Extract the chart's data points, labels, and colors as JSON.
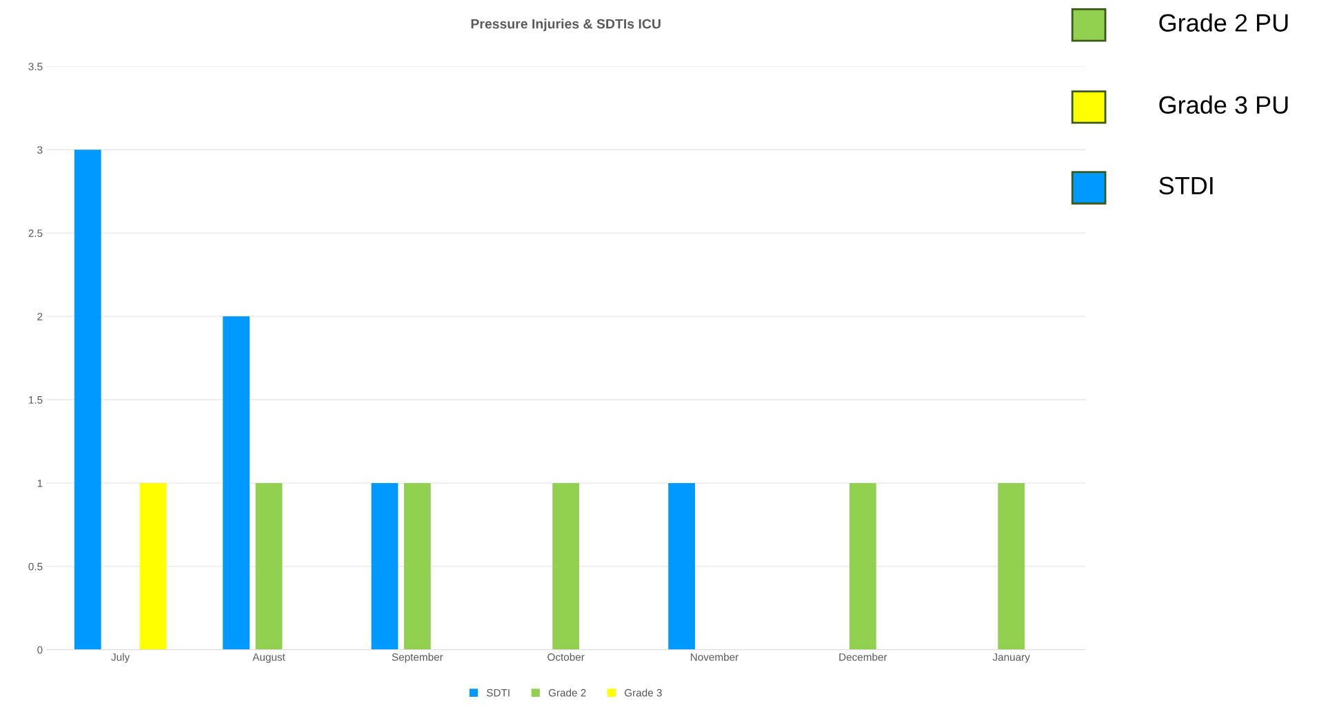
{
  "chart_data": {
    "type": "bar",
    "title": "Pressure Injuries & SDTIs ICU",
    "categories": [
      "July",
      "August",
      "September",
      "October",
      "November",
      "December",
      "January"
    ],
    "series": [
      {
        "name": "SDTI",
        "color": "#0099ff",
        "values": [
          3,
          2,
          1,
          0,
          1,
          0,
          0
        ]
      },
      {
        "name": "Grade 2",
        "color": "#92d050",
        "values": [
          0,
          1,
          1,
          1,
          0,
          1,
          1
        ]
      },
      {
        "name": "Grade 3",
        "color": "#ffff00",
        "values": [
          1,
          0,
          0,
          0,
          0,
          0,
          0
        ]
      }
    ],
    "ylim": [
      0,
      3.5
    ],
    "yticks": [
      0,
      0.5,
      1,
      1.5,
      2,
      2.5,
      3,
      3.5
    ],
    "grid": "y",
    "legend": "bottom",
    "annotations": [
      "Grade 2 PU",
      "Grade 3 PU",
      "STDI"
    ]
  }
}
